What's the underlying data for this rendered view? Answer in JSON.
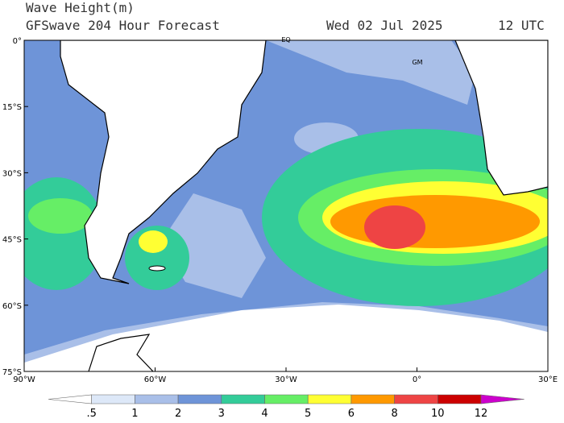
{
  "header": {
    "title": "Wave Height(m)",
    "subtitle": "GFSwave 204 Hour Forecast",
    "date": "Wed 02 Jul 2025",
    "time": "12 UTC"
  },
  "lat_labels": [
    "0°",
    "15°S",
    "30°S",
    "45°S",
    "60°S",
    "75°S"
  ],
  "lon_labels": [
    "90°W",
    "60°W",
    "30°W",
    "0°",
    "30°E"
  ],
  "map_labels": [
    "EQ",
    "GM"
  ],
  "colorbar": {
    "labels": [
      ".5",
      "1",
      "2",
      "3",
      "4",
      "5",
      "6",
      "8",
      "10",
      "12"
    ],
    "colors": [
      "#ffffff",
      "#dde8f8",
      "#a9bfe8",
      "#6e94d8",
      "#33cc99",
      "#66ee66",
      "#ffff33",
      "#ff9900",
      "#ee4444",
      "#cc0000",
      "#cc00cc"
    ]
  }
}
